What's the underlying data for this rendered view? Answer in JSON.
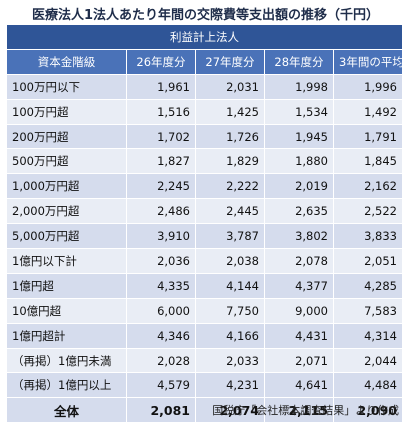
{
  "title": "医療法人1法人あたり年間の交際費等支出額の推移（千円）",
  "table": {
    "band_label": "利益計上法人",
    "headers": [
      "資本金階級",
      "26年度分",
      "27年度分",
      "28年度分",
      "3年間の平均"
    ],
    "rows": [
      {
        "label": "100万円以下",
        "values": [
          "1,961",
          "2,031",
          "1,998",
          "1,996"
        ]
      },
      {
        "label": "100万円超",
        "values": [
          "1,516",
          "1,425",
          "1,534",
          "1,492"
        ]
      },
      {
        "label": "200万円超",
        "values": [
          "1,702",
          "1,726",
          "1,945",
          "1,791"
        ]
      },
      {
        "label": "500万円超",
        "values": [
          "1,827",
          "1,829",
          "1,880",
          "1,845"
        ]
      },
      {
        "label": "1,000万円超",
        "values": [
          "2,245",
          "2,222",
          "2,019",
          "2,162"
        ]
      },
      {
        "label": "2,000万円超",
        "values": [
          "2,486",
          "2,445",
          "2,635",
          "2,522"
        ]
      },
      {
        "label": "5,000万円超",
        "values": [
          "3,910",
          "3,787",
          "3,802",
          "3,833"
        ]
      },
      {
        "label": "1億円以下計",
        "values": [
          "2,036",
          "2,038",
          "2,078",
          "2,051"
        ]
      },
      {
        "label": "1億円超",
        "values": [
          "4,335",
          "4,144",
          "4,377",
          "4,285"
        ]
      },
      {
        "label": "10億円超",
        "values": [
          "6,000",
          "7,750",
          "9,000",
          "7,583"
        ]
      },
      {
        "label": "1億円超計",
        "values": [
          "4,346",
          "4,166",
          "4,431",
          "4,314"
        ]
      },
      {
        "label": "（再掲）1億円未満",
        "values": [
          "2,028",
          "2,033",
          "2,071",
          "2,044"
        ]
      },
      {
        "label": "（再掲）1億円以上",
        "values": [
          "4,579",
          "4,231",
          "4,641",
          "4,484"
        ]
      }
    ],
    "total": {
      "label": "全体",
      "values": [
        "2,081",
        "2,074",
        "2,115",
        "2,090"
      ]
    }
  },
  "source": "国税庁「会社標本調査結果」より作成"
}
